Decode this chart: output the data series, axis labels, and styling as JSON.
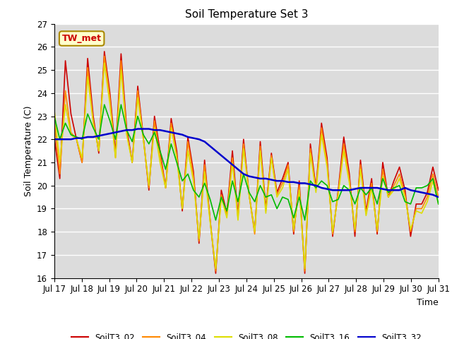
{
  "title": "Soil Temperature Set 3",
  "xlabel": "Time",
  "ylabel": "Soil Temperature (C)",
  "ylim": [
    16.0,
    27.0
  ],
  "yticks": [
    16.0,
    17.0,
    18.0,
    19.0,
    20.0,
    21.0,
    22.0,
    23.0,
    24.0,
    25.0,
    26.0,
    27.0
  ],
  "bg_color": "#dcdcdc",
  "fig_color": "#ffffff",
  "annotation_text": "TW_met",
  "annotation_bg": "#ffffcc",
  "annotation_border": "#aa8800",
  "annotation_text_color": "#cc0000",
  "series_colors": {
    "SoilT3_02": "#cc0000",
    "SoilT3_04": "#ff8800",
    "SoilT3_08": "#dddd00",
    "SoilT3_16": "#00bb00",
    "SoilT3_32": "#0000cc"
  },
  "x_tick_labels": [
    "Jul 17",
    "Jul 18",
    "Jul 19",
    "Jul 20",
    "Jul 21",
    "Jul 22",
    "Jul 23",
    "Jul 24",
    "Jul 25",
    "Jul 26",
    "Jul 27",
    "Jul 28",
    "Jul 29",
    "Jul 30",
    "Jul 31"
  ],
  "x_tick_positions": [
    0,
    1,
    2,
    3,
    4,
    5,
    6,
    7,
    8,
    9,
    10,
    11,
    12,
    13,
    14
  ],
  "SoilT3_02": [
    22.1,
    20.3,
    25.4,
    23.1,
    22.0,
    21.0,
    25.5,
    23.0,
    21.4,
    25.8,
    24.0,
    21.4,
    25.7,
    22.5,
    21.0,
    24.3,
    22.1,
    19.8,
    23.0,
    21.5,
    19.9,
    22.9,
    21.5,
    18.9,
    22.1,
    20.6,
    17.5,
    21.1,
    18.5,
    16.2,
    19.8,
    18.8,
    21.5,
    18.7,
    22.0,
    19.6,
    18.0,
    21.9,
    19.0,
    21.4,
    19.7,
    20.3,
    21.0,
    17.9,
    20.2,
    16.2,
    21.8,
    19.9,
    22.7,
    21.2,
    17.8,
    19.8,
    22.1,
    20.5,
    17.8,
    21.1,
    18.9,
    20.3,
    17.9,
    21.0,
    19.5,
    20.2,
    20.8,
    19.8,
    17.8,
    19.2,
    19.2,
    19.7,
    20.8,
    19.8
  ],
  "SoilT3_04": [
    22.8,
    20.5,
    24.1,
    22.3,
    22.0,
    21.0,
    25.1,
    22.8,
    21.5,
    25.6,
    23.8,
    21.2,
    25.4,
    22.3,
    21.0,
    24.1,
    22.0,
    19.9,
    22.8,
    21.3,
    19.9,
    22.7,
    21.3,
    19.0,
    21.9,
    20.4,
    17.6,
    20.9,
    18.5,
    16.3,
    19.6,
    18.7,
    21.2,
    18.6,
    21.8,
    19.6,
    17.9,
    21.7,
    18.9,
    21.3,
    19.6,
    20.1,
    20.9,
    18.0,
    20.0,
    16.3,
    21.6,
    19.8,
    22.5,
    21.0,
    17.9,
    19.7,
    21.8,
    20.3,
    18.0,
    20.9,
    18.8,
    20.1,
    18.0,
    20.7,
    19.5,
    20.0,
    20.5,
    19.6,
    18.0,
    19.0,
    19.0,
    19.5,
    20.5,
    19.5
  ],
  "SoilT3_08": [
    23.3,
    21.0,
    23.5,
    22.2,
    22.0,
    21.2,
    24.7,
    22.7,
    21.5,
    25.3,
    23.5,
    21.2,
    25.0,
    22.2,
    21.0,
    23.8,
    22.0,
    20.0,
    22.5,
    21.0,
    19.9,
    22.5,
    21.2,
    19.0,
    21.5,
    20.2,
    17.7,
    20.6,
    18.4,
    16.4,
    19.5,
    18.6,
    21.0,
    18.5,
    21.6,
    19.6,
    18.0,
    21.5,
    18.8,
    21.2,
    19.5,
    19.9,
    20.7,
    18.1,
    19.8,
    16.4,
    21.4,
    19.7,
    22.2,
    20.8,
    18.0,
    19.6,
    21.5,
    20.1,
    18.1,
    20.7,
    18.7,
    19.9,
    18.1,
    20.4,
    19.5,
    19.8,
    20.3,
    19.5,
    18.1,
    18.9,
    18.8,
    19.3,
    20.2,
    19.2
  ],
  "SoilT3_16": [
    23.0,
    22.0,
    22.7,
    22.2,
    22.1,
    22.0,
    23.1,
    22.5,
    22.0,
    23.5,
    22.8,
    22.0,
    23.5,
    22.4,
    21.9,
    23.0,
    22.2,
    21.8,
    22.3,
    21.5,
    20.7,
    21.8,
    21.0,
    20.2,
    20.5,
    19.8,
    19.5,
    20.1,
    19.4,
    18.5,
    19.5,
    18.9,
    20.2,
    19.3,
    20.5,
    19.7,
    19.3,
    20.0,
    19.5,
    19.6,
    19.0,
    19.5,
    19.4,
    18.6,
    19.5,
    18.5,
    20.2,
    19.9,
    20.2,
    20.0,
    19.3,
    19.4,
    20.0,
    19.8,
    19.2,
    19.9,
    19.6,
    19.9,
    19.2,
    20.3,
    19.7,
    19.9,
    20.0,
    19.3,
    19.2,
    19.9,
    19.9,
    20.0,
    20.3,
    19.2
  ],
  "SoilT3_32": [
    22.0,
    22.0,
    22.0,
    22.0,
    22.05,
    22.05,
    22.1,
    22.1,
    22.15,
    22.2,
    22.25,
    22.3,
    22.35,
    22.4,
    22.4,
    22.45,
    22.45,
    22.45,
    22.4,
    22.4,
    22.35,
    22.3,
    22.25,
    22.2,
    22.1,
    22.05,
    22.0,
    21.9,
    21.7,
    21.5,
    21.3,
    21.1,
    20.9,
    20.7,
    20.5,
    20.4,
    20.35,
    20.3,
    20.3,
    20.25,
    20.2,
    20.2,
    20.15,
    20.15,
    20.1,
    20.1,
    20.05,
    20.0,
    19.9,
    19.85,
    19.8,
    19.8,
    19.8,
    19.8,
    19.85,
    19.9,
    19.9,
    19.9,
    19.9,
    19.85,
    19.8,
    19.8,
    19.8,
    19.9,
    19.8,
    19.75,
    19.7,
    19.65,
    19.6,
    19.5
  ]
}
